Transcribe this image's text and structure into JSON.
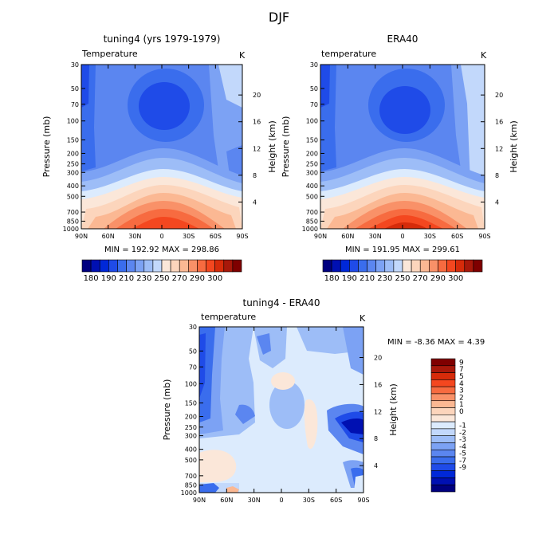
{
  "figure": {
    "title": "DJF"
  },
  "colors": {
    "blues": [
      "#00007f",
      "#0010b2",
      "#0028d8",
      "#1f4be8",
      "#3a6ded",
      "#5b86f0",
      "#7ca2f4",
      "#9dbdf7",
      "#c2d8fb"
    ],
    "whites": [
      "#dcebfd",
      "#fbe7d9"
    ],
    "reds": [
      "#fcd5bc",
      "#fbb893",
      "#f99168",
      "#f76b40",
      "#f4471f",
      "#d62b0a",
      "#a8180a",
      "#7f0000"
    ]
  },
  "chart_data": [
    {
      "type": "heatmap",
      "panel": "top-left",
      "title": "tuning4 (yrs 1979-1979)",
      "field_label": "Temperature",
      "unit_label": "K",
      "xlabel": "",
      "ylabel": "Pressure (mb)",
      "ylabel_right": "Height (km)",
      "x_ticks": [
        "90N",
        "60N",
        "30N",
        "0",
        "30S",
        "60S",
        "90S"
      ],
      "y_ticks": [
        "30",
        "50",
        "70",
        "100",
        "150",
        "200",
        "250",
        "300",
        "400",
        "500",
        "700",
        "850",
        "1000"
      ],
      "y_right_ticks": [
        "20",
        "16",
        "12",
        "8",
        "4"
      ],
      "stats": {
        "min_label": "MIN =",
        "min": "192.92",
        "max_label": "MAX =",
        "max": "298.86"
      },
      "colorbar": {
        "orientation": "horizontal",
        "labels": [
          "180",
          "190",
          "210",
          "230",
          "250",
          "270",
          "290",
          "300"
        ]
      }
    },
    {
      "type": "heatmap",
      "panel": "top-right",
      "title": "ERA40",
      "field_label": "temperature",
      "unit_label": "K",
      "xlabel": "",
      "ylabel": "Pressure (mb)",
      "ylabel_right": "Height (km)",
      "x_ticks": [
        "90N",
        "60N",
        "30N",
        "0",
        "30S",
        "60S",
        "90S"
      ],
      "y_ticks": [
        "30",
        "50",
        "70",
        "100",
        "150",
        "200",
        "250",
        "300",
        "400",
        "500",
        "700",
        "850",
        "1000"
      ],
      "y_right_ticks": [
        "20",
        "16",
        "12",
        "8",
        "4"
      ],
      "stats": {
        "min_label": "MIN =",
        "min": "191.95",
        "max_label": "MAX =",
        "max": "299.61"
      },
      "colorbar": {
        "orientation": "horizontal",
        "labels": [
          "180",
          "190",
          "210",
          "230",
          "250",
          "270",
          "290",
          "300"
        ]
      }
    },
    {
      "type": "heatmap",
      "panel": "bottom",
      "title": "tuning4 - ERA40",
      "field_label": "temperature",
      "unit_label": "K",
      "xlabel": "",
      "ylabel": "Pressure (mb)",
      "ylabel_right": "Height (km)",
      "x_ticks": [
        "90N",
        "60N",
        "30N",
        "0",
        "30S",
        "60S",
        "90S"
      ],
      "y_ticks": [
        "30",
        "50",
        "70",
        "100",
        "150",
        "200",
        "250",
        "300",
        "400",
        "500",
        "700",
        "850",
        "1000"
      ],
      "y_right_ticks": [
        "20",
        "16",
        "12",
        "8",
        "4"
      ],
      "stats": {
        "min_label": "MIN =",
        "min": "-8.36",
        "max_label": "MAX =",
        "max": "4.39"
      },
      "colorbar": {
        "orientation": "vertical",
        "labels": [
          "9",
          "7",
          "5",
          "4",
          "3",
          "2",
          "1",
          "0",
          "-1",
          "-2",
          "-3",
          "-4",
          "-5",
          "-7",
          "-9"
        ]
      }
    }
  ]
}
